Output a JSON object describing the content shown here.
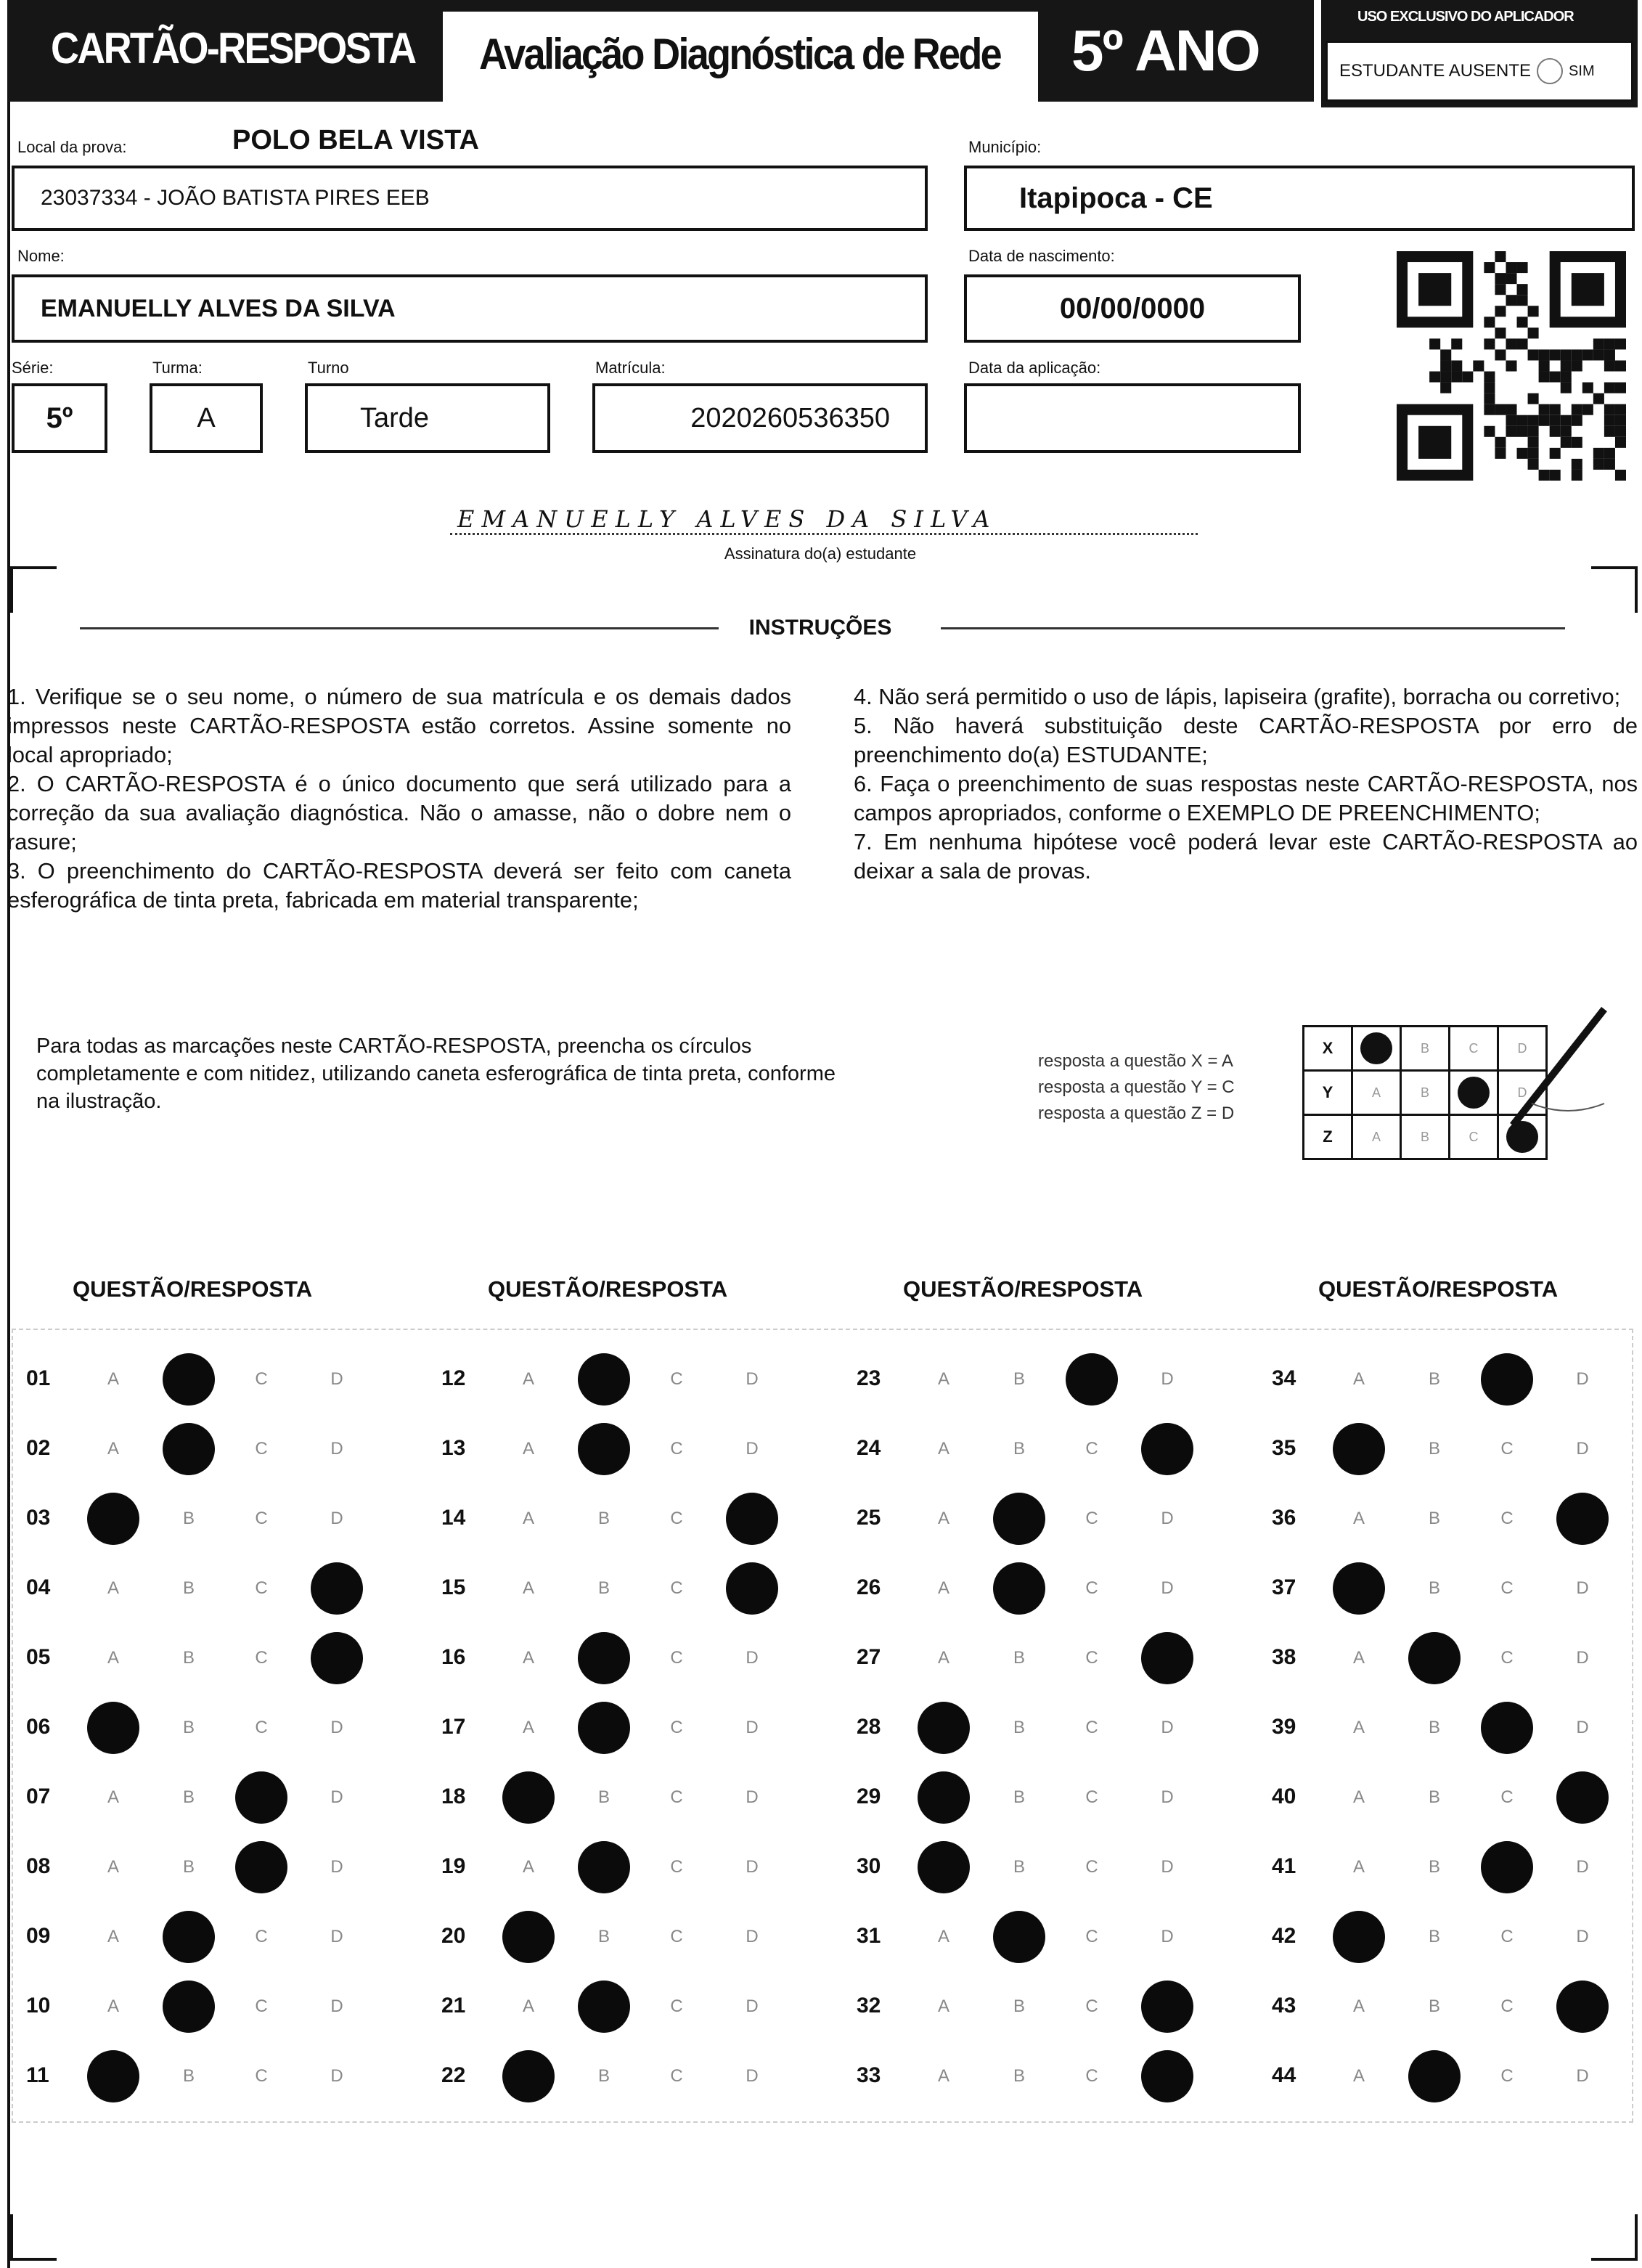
{
  "header": {
    "title": "CARTÃO-RESPOSTA",
    "subtitle": "Avaliação Diagnóstica de Rede",
    "grade": "5º ANO",
    "applicator": {
      "title": "USO EXCLUSIVO DO APLICADOR",
      "absent_label": "ESTUDANTE AUSENTE",
      "absent_option": "SIM"
    }
  },
  "fields": {
    "local_label": "Local da prova:",
    "polo": "POLO BELA VISTA",
    "local_value": "23037334 - JOÃO BATISTA PIRES EEB",
    "municipio_label": "Município:",
    "municipio_value": "Itapipoca - CE",
    "nome_label": "Nome:",
    "nome_value": "EMANUELLY ALVES DA SILVA",
    "nascimento_label": "Data de nascimento:",
    "nascimento_value": "00/00/0000",
    "serie_label": "Série:",
    "serie_value": "5º",
    "turma_label": "Turma:",
    "turma_value": "A",
    "turno_label": "Turno",
    "turno_value": "Tarde",
    "matricula_label": "Matrícula:",
    "matricula_value": "2020260536350",
    "aplicacao_label": "Data da aplicação:",
    "aplicacao_value": ""
  },
  "signature": {
    "handwritten": "EMANUELLY ALVES DA SILVA",
    "label": "Assinatura do(a) estudante"
  },
  "instructions": {
    "title": "INSTRUÇÕES",
    "left": [
      "1. Verifique se o seu nome, o número de sua matrícula e os demais dados impressos neste CARTÃO-RESPOSTA estão corretos. Assine somente no local apropriado;",
      "2. O CARTÃO-RESPOSTA é o único documento que será utilizado para a correção da sua avaliação diagnóstica. Não o amasse, não o dobre nem o rasure;",
      "3. O preenchimento do CARTÃO-RESPOSTA deverá ser feito com caneta esferográfica de tinta preta, fabricada em material transparente;"
    ],
    "right": [
      "4. Não será permitido o uso de lápis, lapiseira (grafite), borracha ou corretivo;",
      "5. Não haverá substituição deste CARTÃO-RESPOSTA por erro de preenchimento do(a) ESTUDANTE;",
      "6. Faça o preenchimento de suas respostas neste CARTÃO-RESPOSTA, nos campos apropriados, conforme o EXEMPLO DE PREENCHIMENTO;",
      "7. Em nenhuma hipótese você poderá levar este CARTÃO-RESPOSTA ao deixar a sala de provas."
    ]
  },
  "example": {
    "text": "Para todas as marcações neste CARTÃO-RESPOSTA, preencha os círculos completamente e com nitidez, utilizando caneta esferográfica de tinta preta, conforme na ilustração.",
    "legend": [
      "resposta a questão X = A",
      "resposta a questão Y = C",
      "resposta a questão Z = D"
    ],
    "rows": [
      {
        "q": "X",
        "answer": "A"
      },
      {
        "q": "Y",
        "answer": "C"
      },
      {
        "q": "Z",
        "answer": "D"
      }
    ]
  },
  "answers": {
    "column_header": "QUESTÃO/RESPOSTA",
    "options": [
      "A",
      "B",
      "C",
      "D"
    ],
    "marked": [
      "B",
      "B",
      "A",
      "D",
      "D",
      "A",
      "C",
      "C",
      "B",
      "B",
      "A",
      "B",
      "B",
      "D",
      "D",
      "B",
      "B",
      "A",
      "B",
      "A",
      "B",
      "A",
      "C",
      "D",
      "B",
      "B",
      "D",
      "A",
      "A",
      "A",
      "B",
      "D",
      "D",
      "C",
      "A",
      "D",
      "A",
      "B",
      "C",
      "D",
      "C",
      "A",
      "D",
      "B"
    ]
  }
}
